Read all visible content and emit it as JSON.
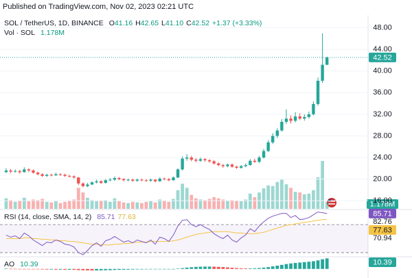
{
  "header": {
    "published": "Published on TradingView.com, Nov 02, 2023 02:21 UTC"
  },
  "chart_data": [
    {
      "type": "candlestick",
      "title": "SOL / TetherUS, 1D, BINANCE",
      "ohlc_legend": {
        "labels": [
          "O",
          "H",
          "L",
          "C"
        ],
        "values": [
          "41.16",
          "42.65",
          "41.10",
          "42.52"
        ]
      },
      "change": "+1.37 (+3.33%)",
      "open": [
        21.3,
        21.6,
        21.4,
        21.5,
        21.3,
        21.8,
        21.6,
        21.2,
        20.9,
        20.6,
        20.8,
        20.7,
        20.9,
        20.8,
        20.6,
        20.5,
        20.3,
        19.2,
        18.7,
        19.0,
        19.4,
        19.6,
        19.3,
        19.8,
        19.9,
        20.2,
        20.0,
        19.8,
        19.9,
        19.7,
        19.9,
        19.8,
        19.7,
        19.9,
        19.6,
        20.1,
        20.0,
        19.8,
        20.3,
        21.8,
        23.8,
        24.0,
        23.6,
        23.4,
        23.7,
        23.5,
        23.3,
        22.9,
        22.6,
        22.4,
        22.7,
        22.3,
        22.1,
        22.4,
        22.6,
        23.4,
        23.2,
        24.0,
        25.2,
        26.8,
        28.0,
        29.0,
        30.6,
        31.2,
        30.8,
        31.6,
        31.2,
        31.5,
        32.0,
        33.9,
        38.2,
        41.16
      ],
      "high": [
        22.0,
        21.9,
        21.8,
        21.7,
        22.2,
        22.0,
        21.8,
        21.4,
        21.1,
        21.0,
        21.0,
        21.2,
        21.1,
        21.0,
        20.8,
        20.7,
        20.4,
        19.4,
        19.3,
        19.6,
        19.9,
        19.8,
        20.0,
        20.2,
        20.5,
        20.4,
        20.2,
        20.1,
        20.1,
        20.1,
        20.1,
        20.0,
        20.1,
        20.0,
        20.3,
        20.3,
        20.2,
        20.5,
        22.0,
        24.2,
        24.6,
        24.3,
        23.9,
        24.0,
        23.9,
        23.7,
        23.5,
        23.1,
        22.8,
        22.9,
        22.9,
        22.5,
        22.6,
        22.9,
        23.7,
        23.8,
        24.3,
        25.6,
        27.2,
        28.5,
        29.4,
        31.1,
        32.9,
        31.8,
        32.4,
        32.2,
        32.0,
        32.5,
        34.4,
        38.8,
        47.0,
        42.65
      ],
      "low": [
        21.1,
        21.1,
        21.2,
        21.0,
        21.2,
        21.3,
        21.0,
        20.7,
        20.4,
        20.4,
        20.5,
        20.6,
        20.6,
        20.4,
        20.3,
        20.1,
        18.9,
        18.5,
        18.5,
        18.9,
        19.2,
        19.1,
        19.2,
        19.6,
        19.7,
        19.8,
        19.6,
        19.6,
        19.5,
        19.5,
        19.6,
        19.5,
        19.5,
        19.4,
        19.5,
        19.8,
        19.6,
        19.7,
        20.2,
        21.6,
        23.4,
        23.3,
        23.1,
        23.2,
        23.2,
        23.0,
        22.7,
        22.4,
        22.1,
        22.2,
        22.1,
        21.9,
        21.9,
        22.2,
        22.5,
        23.0,
        23.0,
        23.8,
        25.0,
        26.5,
        27.6,
        28.8,
        30.2,
        30.3,
        30.5,
        30.9,
        30.8,
        31.2,
        31.8,
        33.6,
        37.8,
        41.1
      ],
      "close": [
        21.6,
        21.4,
        21.5,
        21.3,
        21.8,
        21.6,
        21.2,
        20.9,
        20.6,
        20.8,
        20.7,
        20.9,
        20.8,
        20.6,
        20.5,
        20.3,
        19.2,
        18.7,
        19.0,
        19.4,
        19.6,
        19.3,
        19.8,
        19.9,
        20.2,
        20.0,
        19.8,
        19.9,
        19.7,
        19.9,
        19.8,
        19.7,
        19.9,
        19.6,
        20.1,
        20.0,
        19.8,
        20.3,
        21.8,
        23.8,
        24.0,
        23.6,
        23.4,
        23.7,
        23.5,
        23.3,
        22.9,
        22.6,
        22.4,
        22.7,
        22.3,
        22.1,
        22.4,
        22.6,
        23.4,
        23.2,
        24.0,
        25.2,
        26.8,
        28.0,
        29.0,
        30.6,
        31.2,
        30.8,
        31.6,
        31.2,
        31.5,
        32.0,
        33.9,
        38.2,
        41.16,
        42.52
      ],
      "up_color": "#26a69a",
      "down_color": "#ef5350",
      "ylim": [
        14.5,
        49.6
      ],
      "yticks": [
        {
          "value": 16,
          "label": "16.00"
        },
        {
          "value": 20,
          "label": "20.00"
        },
        {
          "value": 24,
          "label": "24.00"
        },
        {
          "value": 28,
          "label": "28.00"
        },
        {
          "value": 32,
          "label": "32.00"
        },
        {
          "value": 36,
          "label": "36.00"
        },
        {
          "value": 40,
          "label": "40.00"
        },
        {
          "value": 44,
          "label": "44.00"
        },
        {
          "value": 48,
          "label": "48.00"
        }
      ],
      "grid": true
    },
    {
      "type": "volume",
      "title": "Vol · SOL",
      "values": [
        1800000,
        1500000,
        1200000,
        1400000,
        1900000,
        1300000,
        1600000,
        1500000,
        1700000,
        1200000,
        1100000,
        1300000,
        1000000,
        1200000,
        1400000,
        1600000,
        3600000,
        2800000,
        1900000,
        1500000,
        1300000,
        1400000,
        1500000,
        1200000,
        1800000,
        1300000,
        1100000,
        1000000,
        1200000,
        1100000,
        1000000,
        1200000,
        1300000,
        1100000,
        1600000,
        1400000,
        1200000,
        1700000,
        3200000,
        4300000,
        3600000,
        2400000,
        1800000,
        1600000,
        1500000,
        1700000,
        2000000,
        1800000,
        1600000,
        1400000,
        1500000,
        1400000,
        1300000,
        1600000,
        2600000,
        2000000,
        2800000,
        3500000,
        4000000,
        3900000,
        4600000,
        5000000,
        4200000,
        3600000,
        2900000,
        2800000,
        2500000,
        2600000,
        3200000,
        5400000,
        8200000,
        1178000
      ],
      "value_labels": [
        null,
        null,
        null,
        null,
        null,
        null,
        null,
        null,
        null,
        null,
        null,
        null,
        null,
        null,
        null,
        null,
        null,
        null,
        null,
        null,
        null,
        null,
        null,
        null,
        null,
        null,
        null,
        null,
        null,
        null,
        null,
        null,
        null,
        null,
        null,
        null,
        null,
        null,
        null,
        null,
        null,
        null,
        null,
        null,
        null,
        null,
        null,
        null,
        null,
        null,
        null,
        null,
        null,
        null,
        null,
        null,
        null,
        null,
        null,
        null,
        null,
        null,
        null,
        null,
        null,
        null,
        null,
        null,
        null,
        null,
        null,
        "1.178M"
      ]
    },
    {
      "type": "rsi",
      "title": "RSI (14, close, SMA, 14, 2)",
      "series": [
        {
          "color": "#7e57c2",
          "values": [
            55,
            52,
            54,
            50,
            58,
            54,
            48,
            44,
            40,
            45,
            44,
            48,
            46,
            42,
            41,
            38,
            30,
            27,
            33,
            40,
            44,
            39,
            47,
            49,
            53,
            49,
            45,
            47,
            44,
            48,
            46,
            44,
            48,
            42,
            52,
            50,
            46,
            55,
            68,
            76,
            77,
            70,
            67,
            70,
            66,
            63,
            57,
            53,
            50,
            55,
            48,
            45,
            51,
            55,
            64,
            60,
            68,
            74,
            79,
            82,
            84,
            86,
            86,
            80,
            83,
            77,
            78,
            80,
            84,
            88,
            87,
            85.71
          ]
        },
        {
          "color": "#f5c343",
          "values": [
            50,
            50,
            50,
            50,
            51,
            51,
            50,
            50,
            49,
            49,
            48,
            48,
            47,
            47,
            46,
            46,
            45,
            44,
            43,
            42,
            42,
            41,
            41,
            41,
            42,
            42,
            43,
            43,
            44,
            45,
            45,
            45,
            46,
            46,
            46,
            46,
            46,
            47,
            48,
            50,
            52,
            54,
            56,
            57,
            58,
            59,
            60,
            60,
            60,
            60,
            59,
            58,
            58,
            57,
            57,
            57,
            58,
            59,
            61,
            63,
            65,
            67,
            69,
            70,
            71,
            72,
            73,
            74,
            75,
            76,
            77,
            77.63
          ]
        }
      ],
      "ylim": [
        27,
        90.5
      ],
      "yticks": [
        82.76,
        70.94
      ],
      "bands": [
        70,
        30
      ]
    },
    {
      "type": "ao",
      "title": "AO",
      "values": [
        0.3,
        0.2,
        0.1,
        0.0,
        -0.1,
        -0.2,
        -0.3,
        -0.4,
        -0.5,
        -0.6,
        -0.6,
        -0.7,
        -0.7,
        -0.8,
        -0.8,
        -0.9,
        -1.1,
        -1.3,
        -1.4,
        -1.5,
        -1.5,
        -1.4,
        -1.3,
        -1.2,
        -1.0,
        -0.9,
        -0.8,
        -0.7,
        -0.6,
        -0.5,
        -0.5,
        -0.4,
        -0.4,
        -0.3,
        -0.3,
        -0.2,
        -0.2,
        0.0,
        0.3,
        0.8,
        1.3,
        1.7,
        2.0,
        2.2,
        2.3,
        2.3,
        2.2,
        2.0,
        1.8,
        1.5,
        1.2,
        0.9,
        0.7,
        0.6,
        0.6,
        0.7,
        0.9,
        1.3,
        1.8,
        2.5,
        3.2,
        4.0,
        4.8,
        5.4,
        5.9,
        6.3,
        6.7,
        7.1,
        7.6,
        8.4,
        9.5,
        10.39
      ],
      "ylim": [
        -1.5,
        10.6
      ],
      "up_color": "#26a69a",
      "down_color": "#ef5350"
    }
  ]
}
